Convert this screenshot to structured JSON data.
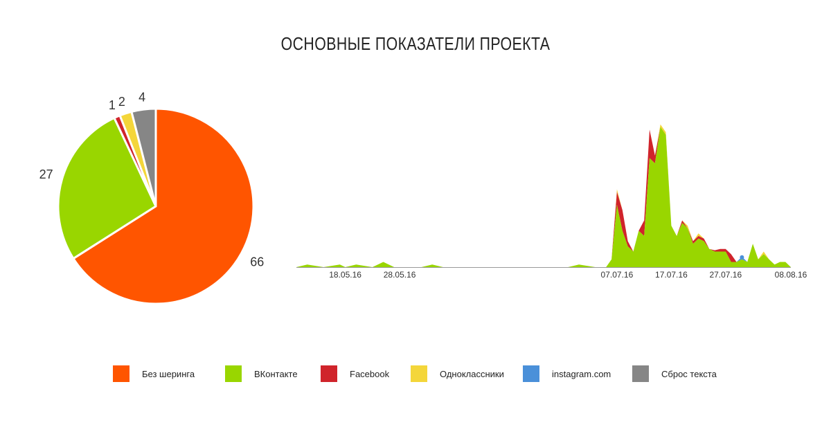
{
  "title": "ОСНОВНЫЕ ПОКАЗАТЕЛИ ПРОЕКТА",
  "chart_data": [
    {
      "type": "pie",
      "title": "",
      "slices": [
        {
          "label": "Без шеринга",
          "value": 66,
          "color": "#ff5500"
        },
        {
          "label": "ВКонтакте",
          "value": 27,
          "color": "#99d600"
        },
        {
          "label": "Facebook",
          "value": 1,
          "color": "#d0242b"
        },
        {
          "label": "Одноклассники",
          "value": 2,
          "color": "#f4d63a"
        },
        {
          "label": "Сброс текста",
          "value": 4,
          "color": "#868686"
        }
      ]
    },
    {
      "type": "area",
      "stacked": true,
      "title": "",
      "xlabel": "",
      "ylabel": "",
      "x_range": [
        "09.05.16",
        "08.08.16"
      ],
      "x_ticks": [
        "18.05.16",
        "28.05.16",
        "07.07.16",
        "17.07.16",
        "27.07.16",
        "08.08.16"
      ],
      "x_tick_colors": [
        "#333333",
        "#333333",
        "#333333",
        "#333333",
        "#333333",
        "#d0242b"
      ],
      "grid": false,
      "series": [
        {
          "name": "ВКонтакте",
          "color": "#99d600",
          "points": [
            [
              "09.05.16",
              0
            ],
            [
              "11.05.16",
              1
            ],
            [
              "14.05.16",
              0
            ],
            [
              "17.05.16",
              1
            ],
            [
              "18.05.16",
              0
            ],
            [
              "20.05.16",
              1
            ],
            [
              "23.05.16",
              0
            ],
            [
              "25.05.16",
              2
            ],
            [
              "27.05.16",
              0
            ],
            [
              "01.06.16",
              0
            ],
            [
              "03.06.16",
              1
            ],
            [
              "05.06.16",
              0
            ],
            [
              "28.06.16",
              0
            ],
            [
              "30.06.16",
              1
            ],
            [
              "03.07.16",
              0
            ],
            [
              "05.07.16",
              0
            ],
            [
              "06.07.16",
              3
            ],
            [
              "07.07.16",
              24
            ],
            [
              "08.07.16",
              14
            ],
            [
              "09.07.16",
              8
            ],
            [
              "10.07.16",
              6
            ],
            [
              "11.07.16",
              14
            ],
            [
              "12.07.16",
              12
            ],
            [
              "13.07.16",
              42
            ],
            [
              "14.07.16",
              40
            ],
            [
              "15.07.16",
              54
            ],
            [
              "16.07.16",
              51
            ],
            [
              "17.07.16",
              16
            ],
            [
              "18.07.16",
              12
            ],
            [
              "19.07.16",
              17
            ],
            [
              "20.07.16",
              15
            ],
            [
              "21.07.16",
              9
            ],
            [
              "22.07.16",
              11
            ],
            [
              "23.07.16",
              10
            ],
            [
              "24.07.16",
              7
            ],
            [
              "25.07.16",
              6
            ],
            [
              "26.07.16",
              6
            ],
            [
              "27.07.16",
              6
            ],
            [
              "28.07.16",
              2
            ],
            [
              "29.07.16",
              2
            ],
            [
              "30.07.16",
              3
            ],
            [
              "31.07.16",
              2
            ],
            [
              "01.08.16",
              9
            ],
            [
              "02.08.16",
              3
            ],
            [
              "03.08.16",
              5
            ],
            [
              "04.08.16",
              3
            ],
            [
              "05.08.16",
              1
            ],
            [
              "06.08.16",
              2
            ],
            [
              "07.08.16",
              2
            ],
            [
              "08.08.16",
              0
            ]
          ]
        },
        {
          "name": "Facebook",
          "color": "#d0242b",
          "points": [
            [
              "06.07.16",
              0
            ],
            [
              "07.07.16",
              5
            ],
            [
              "08.07.16",
              8
            ],
            [
              "09.07.16",
              2
            ],
            [
              "10.07.16",
              0
            ],
            [
              "11.07.16",
              0
            ],
            [
              "12.07.16",
              6
            ],
            [
              "13.07.16",
              11
            ],
            [
              "14.07.16",
              3
            ],
            [
              "15.07.16",
              0
            ],
            [
              "18.07.16",
              0
            ],
            [
              "19.07.16",
              1
            ],
            [
              "20.07.16",
              0
            ],
            [
              "21.07.16",
              1
            ],
            [
              "22.07.16",
              1
            ],
            [
              "23.07.16",
              1
            ],
            [
              "24.07.16",
              0
            ],
            [
              "26.07.16",
              1
            ],
            [
              "27.07.16",
              1
            ],
            [
              "28.07.16",
              3
            ],
            [
              "29.07.16",
              0
            ]
          ]
        },
        {
          "name": "Одноклассники",
          "color": "#f4d63a",
          "points": [
            [
              "06.07.16",
              0
            ],
            [
              "07.07.16",
              1
            ],
            [
              "08.07.16",
              0
            ],
            [
              "14.07.16",
              0
            ],
            [
              "15.07.16",
              1
            ],
            [
              "16.07.16",
              1
            ],
            [
              "17.07.16",
              0
            ],
            [
              "19.07.16",
              0
            ],
            [
              "20.07.16",
              1
            ],
            [
              "21.07.16",
              0
            ],
            [
              "22.07.16",
              1
            ],
            [
              "23.07.16",
              0
            ],
            [
              "02.08.16",
              0
            ],
            [
              "03.08.16",
              1
            ],
            [
              "04.08.16",
              0
            ]
          ]
        },
        {
          "name": "instagram.com",
          "color": "#4a90d9",
          "points": [
            [
              "29.07.16",
              0
            ],
            [
              "30.07.16",
              1
            ],
            [
              "31.07.16",
              0
            ]
          ]
        }
      ]
    }
  ],
  "legend": [
    {
      "label": "Без шеринга",
      "color": "#ff5500"
    },
    {
      "label": "ВКонтакте",
      "color": "#99d600"
    },
    {
      "label": "Facebook",
      "color": "#d0242b"
    },
    {
      "label": "Одноклассники",
      "color": "#f4d63a"
    },
    {
      "label": "instagram.com",
      "color": "#4a90d9"
    },
    {
      "label": "Сброс текста",
      "color": "#868686"
    }
  ]
}
